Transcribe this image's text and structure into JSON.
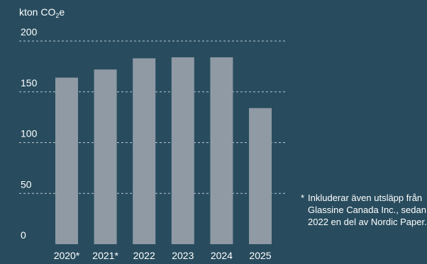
{
  "unit_label": {
    "text": "kton CO",
    "subscript": "2",
    "suffix": "e"
  },
  "footnote": {
    "star": "*",
    "text": "Inkluderar även utsläpp från Glassine Canada Inc., sedan 2022 en del av Nordic Paper."
  },
  "colors": {
    "background": "#284c5e",
    "bar": "#8f9aa5",
    "grid": "#b9c6cf",
    "text": "#ffffff"
  },
  "chart_data": {
    "type": "bar",
    "categories": [
      "2020*",
      "2021*",
      "2022",
      "2023",
      "2024",
      "2025"
    ],
    "values": [
      164,
      172,
      183,
      184,
      184,
      134
    ],
    "ylim": [
      0,
      200
    ],
    "yticks": [
      0,
      50,
      100,
      150,
      200
    ],
    "ytick_labels": [
      "0",
      "50",
      "100",
      "150",
      "200"
    ],
    "ylabel": "kton CO2e",
    "grid": "horizontal-dashed",
    "legend": "none"
  }
}
